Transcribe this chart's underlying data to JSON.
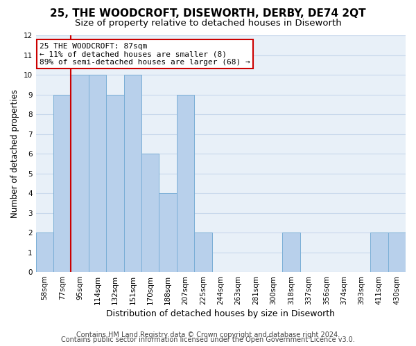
{
  "title": "25, THE WOODCROFT, DISEWORTH, DERBY, DE74 2QT",
  "subtitle": "Size of property relative to detached houses in Diseworth",
  "xlabel": "Distribution of detached houses by size in Diseworth",
  "ylabel": "Number of detached properties",
  "bar_labels": [
    "58sqm",
    "77sqm",
    "95sqm",
    "114sqm",
    "132sqm",
    "151sqm",
    "170sqm",
    "188sqm",
    "207sqm",
    "225sqm",
    "244sqm",
    "263sqm",
    "281sqm",
    "300sqm",
    "318sqm",
    "337sqm",
    "356sqm",
    "374sqm",
    "393sqm",
    "411sqm",
    "430sqm"
  ],
  "bar_values": [
    2,
    9,
    10,
    10,
    9,
    10,
    6,
    4,
    9,
    2,
    0,
    0,
    0,
    0,
    2,
    0,
    0,
    0,
    0,
    2,
    2
  ],
  "bar_color": "#b8d0eb",
  "bar_edge_color": "#7aaed6",
  "vline_color": "#cc0000",
  "vline_x_idx": 2,
  "annotation_line1": "25 THE WOODCROFT: 87sqm",
  "annotation_line2": "← 11% of detached houses are smaller (8)",
  "annotation_line3": "89% of semi-detached houses are larger (68) →",
  "annotation_box_edge": "#cc0000",
  "ylim": [
    0,
    12
  ],
  "yticks": [
    0,
    1,
    2,
    3,
    4,
    5,
    6,
    7,
    8,
    9,
    10,
    11,
    12
  ],
  "footer_line1": "Contains HM Land Registry data © Crown copyright and database right 2024.",
  "footer_line2": "Contains public sector information licensed under the Open Government Licence v3.0.",
  "background_color": "#ffffff",
  "plot_bg_color": "#e8f0f8",
  "grid_color": "#c8d8ec",
  "title_fontsize": 11,
  "subtitle_fontsize": 9.5,
  "xlabel_fontsize": 9,
  "ylabel_fontsize": 8.5,
  "tick_fontsize": 7.5,
  "annotation_fontsize": 8,
  "footer_fontsize": 7
}
